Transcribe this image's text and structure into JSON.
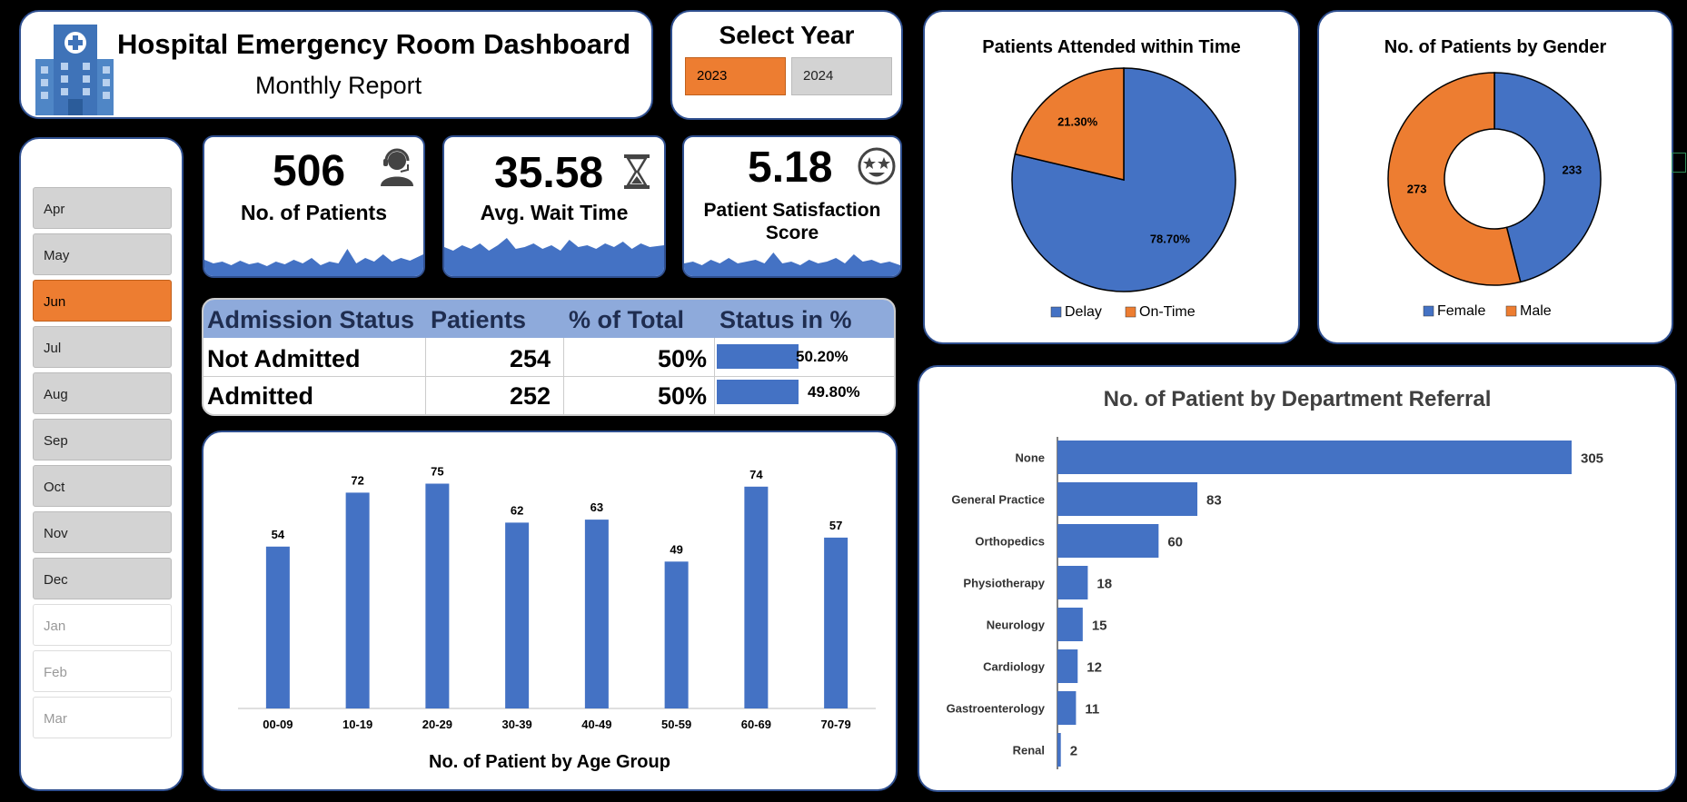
{
  "header": {
    "title": "Hospital Emergency Room Dashboard",
    "subtitle": "Monthly Report",
    "icon": "hospital-icon"
  },
  "year_selector": {
    "title": "Select Year",
    "options": [
      "2023",
      "2024"
    ],
    "selected": "2023"
  },
  "months": {
    "items": [
      "Apr",
      "May",
      "Jun",
      "Jul",
      "Aug",
      "Sep",
      "Oct",
      "Nov",
      "Dec",
      "Jan",
      "Feb",
      "Mar"
    ],
    "selected": "Jun",
    "disabled": [
      "Jan",
      "Feb",
      "Mar"
    ]
  },
  "kpis": {
    "patients": {
      "value": "506",
      "label": "No. of  Patients",
      "icon": "person-headset-icon"
    },
    "wait": {
      "value": "35.58",
      "label": "Avg. Wait Time",
      "icon": "hourglass-icon"
    },
    "score": {
      "value": "5.18",
      "label": "Patient Satisfaction Score",
      "icon": "star-eyes-face-icon"
    }
  },
  "admission": {
    "headers": [
      "Admission Status",
      "Patients",
      "% of Total",
      "Status in %"
    ],
    "rows": [
      {
        "status": "Not Admitted",
        "patients": "254",
        "pct_total": "50%",
        "status_pct": "50.20%",
        "fraction": 0.502
      },
      {
        "status": "Admitted",
        "patients": "252",
        "pct_total": "50%",
        "status_pct": "49.80%",
        "fraction": 0.498
      }
    ]
  },
  "colors": {
    "blue": "#4472c4",
    "orange": "#ed7d31",
    "header_blue": "#8eaadb"
  },
  "chart_data": [
    {
      "type": "bar",
      "title": "No. of Patient by Age Group",
      "categories": [
        "00-09",
        "10-19",
        "20-29",
        "30-39",
        "40-49",
        "50-59",
        "60-69",
        "70-79"
      ],
      "values": [
        54,
        72,
        75,
        62,
        63,
        49,
        74,
        57
      ],
      "ylim": [
        0,
        80
      ],
      "grid": false
    },
    {
      "type": "pie",
      "title": "Patients Attended within Time",
      "categories": [
        "Delay",
        "On-Time"
      ],
      "values": [
        78.7,
        21.3
      ],
      "labels": [
        "78.70%",
        "21.30%"
      ],
      "legend": "bottom"
    },
    {
      "type": "pie",
      "title": "No. of Patients by Gender",
      "categories": [
        "Female",
        "Male"
      ],
      "values": [
        233,
        273
      ],
      "labels": [
        "233",
        "273"
      ],
      "legend": "bottom"
    },
    {
      "type": "bar",
      "orientation": "horizontal",
      "title": "No. of Patient by Department Referral",
      "categories": [
        "None",
        "General Practice",
        "Orthopedics",
        "Physiotherapy",
        "Neurology",
        "Cardiology",
        "Gastroenterology",
        "Renal"
      ],
      "values": [
        305,
        83,
        60,
        18,
        15,
        12,
        11,
        2
      ],
      "grid": false
    }
  ]
}
